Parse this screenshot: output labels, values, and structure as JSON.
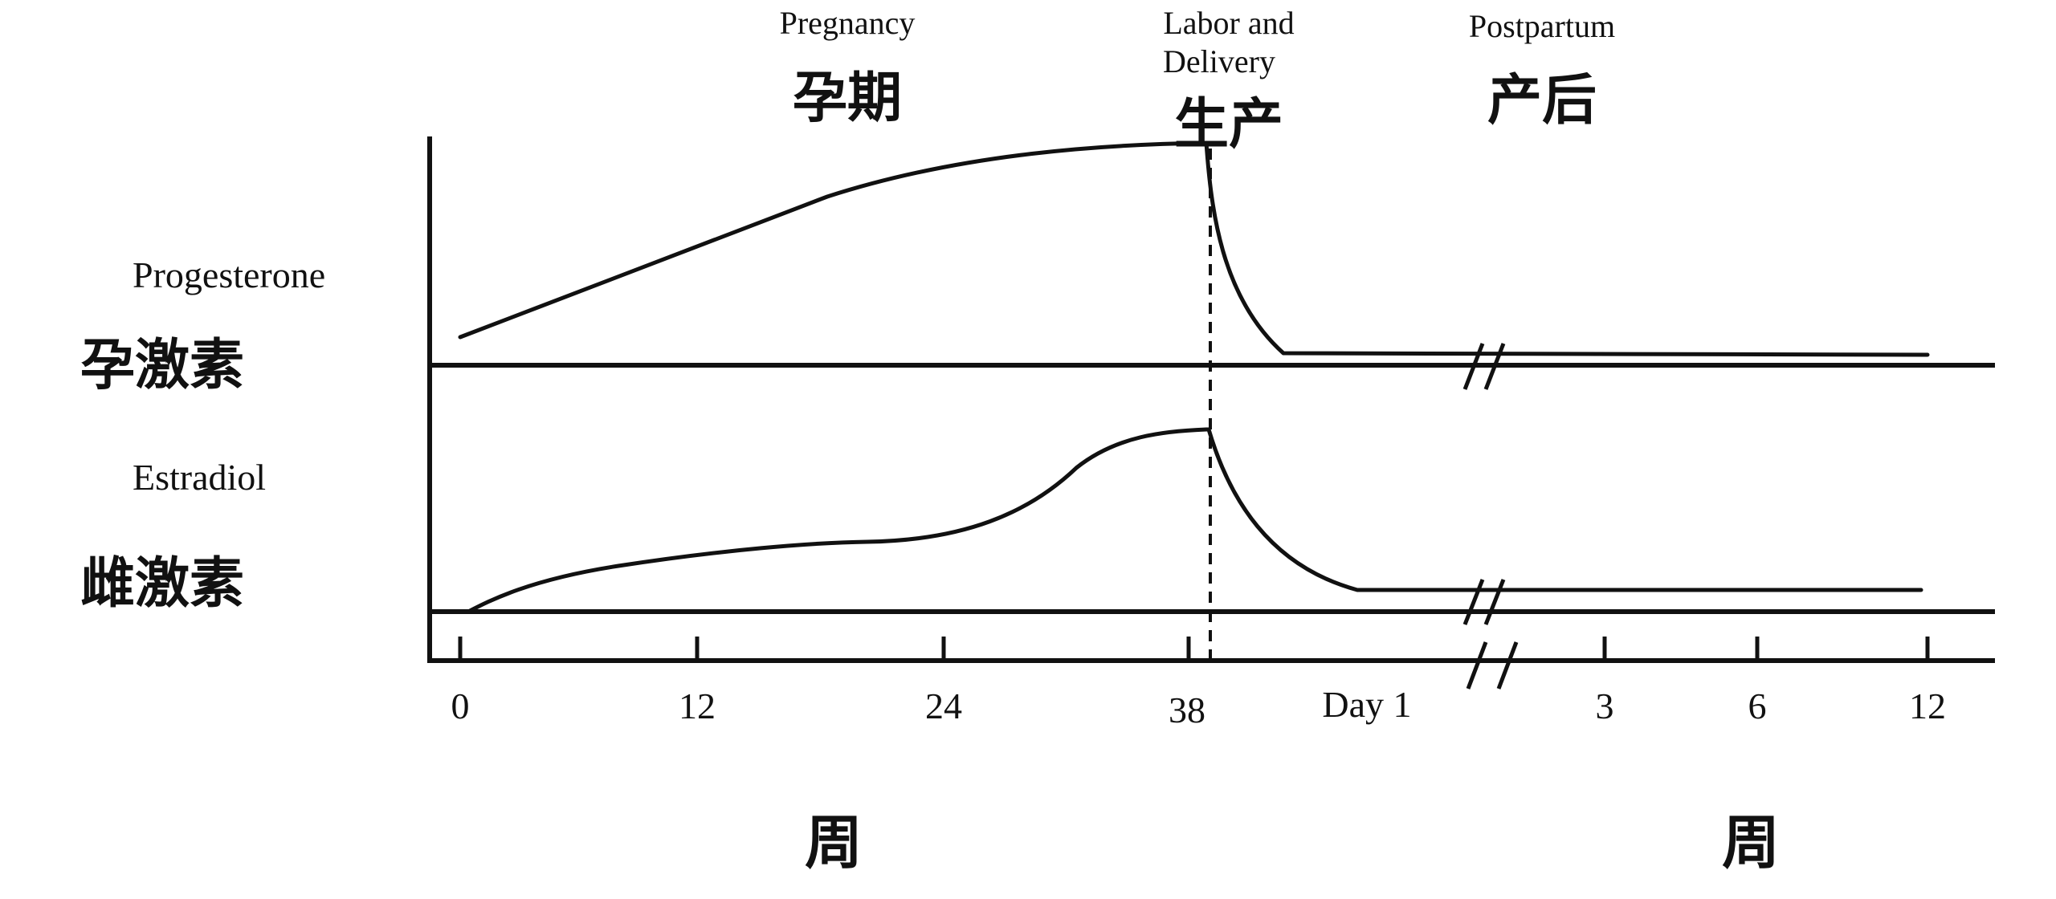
{
  "phases": {
    "pregnancy": {
      "label": "Pregnancy",
      "label_cn": "孕期"
    },
    "labor": {
      "label_line1": "Labor and",
      "label_line2": "Delivery",
      "label_cn": "生产"
    },
    "postpartum": {
      "label": "Postpartum",
      "label_cn": "产后"
    }
  },
  "panels": {
    "progesterone": {
      "label": "Progesterone",
      "label_cn": "孕激素"
    },
    "estradiol": {
      "label": "Estradiol",
      "label_cn": "雌激素"
    }
  },
  "x_axis": {
    "ticks": [
      "0",
      "12",
      "24",
      "38",
      "Day 1",
      "3",
      "6",
      "12"
    ],
    "unit_left_cn": "周",
    "unit_right_cn": "周"
  },
  "colors": {
    "cn_label": "#6e1043",
    "line": "#111111"
  },
  "chart_data": {
    "type": "line",
    "x_categories": [
      "0",
      "12",
      "24",
      "38",
      "Day 1",
      "3",
      "6",
      "12"
    ],
    "y_scale": "relative level (0 = baseline, 1 = peak); no y values printed",
    "axis_break": "between Day 1 and 3",
    "series": [
      {
        "name": "Progesterone",
        "points": [
          {
            "x": "0 weeks",
            "y": 0.14
          },
          {
            "x": "12 weeks",
            "y": 0.5
          },
          {
            "x": "18 weeks",
            "y": 0.73
          },
          {
            "x": "24 weeks",
            "y": 0.88
          },
          {
            "x": "32 weeks",
            "y": 0.95
          },
          {
            "x": "38 weeks (delivery)",
            "y": 0.98
          },
          {
            "x": "Day 1 postpartum",
            "y": 0.05
          },
          {
            "x": "12 weeks postpartum",
            "y": 0.05
          }
        ]
      },
      {
        "name": "Estradiol",
        "points": [
          {
            "x": "0 weeks",
            "y": 0.0
          },
          {
            "x": "12 weeks",
            "y": 0.35
          },
          {
            "x": "24 weeks",
            "y": 0.44
          },
          {
            "x": "30 weeks",
            "y": 0.7
          },
          {
            "x": "38 weeks (delivery)",
            "y": 0.98
          },
          {
            "x": "Day 1 postpartum",
            "y": 0.12
          },
          {
            "x": "12 weeks postpartum",
            "y": 0.12
          }
        ]
      }
    ]
  }
}
